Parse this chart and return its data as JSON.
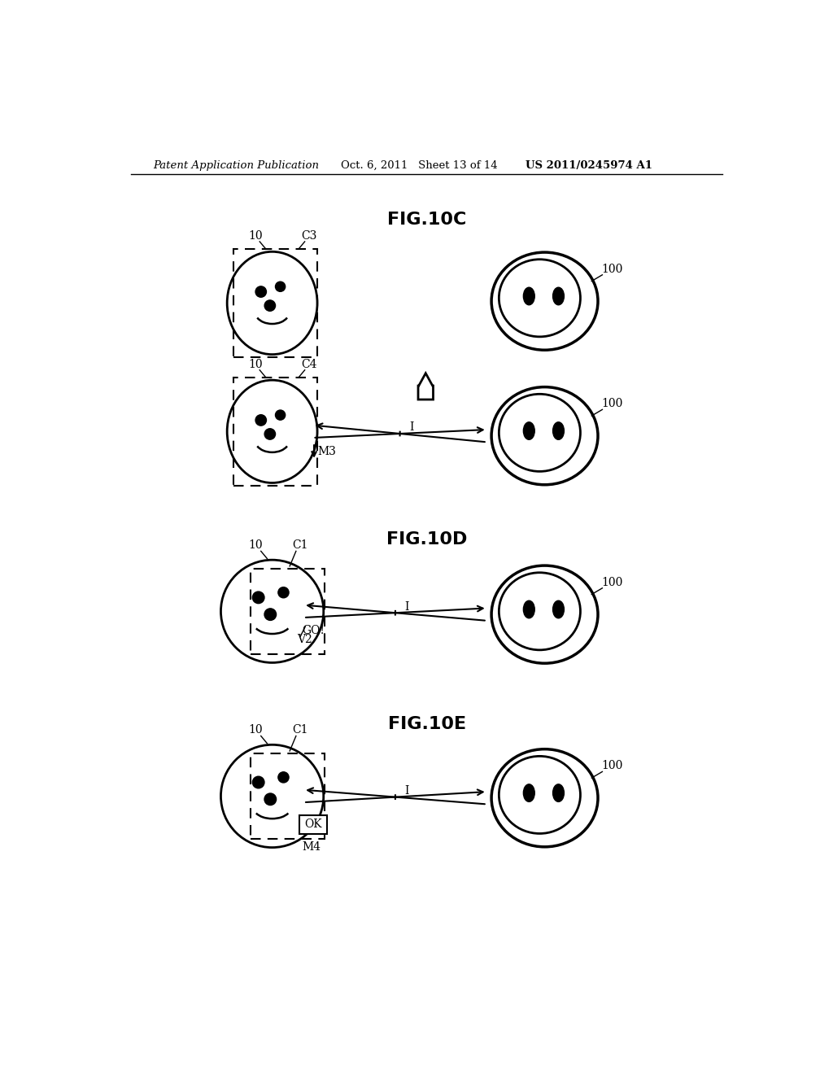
{
  "bg_color": "#ffffff",
  "header_left": "Patent Application Publication",
  "header_mid": "Oct. 6, 2011   Sheet 13 of 14",
  "header_right": "US 2011/0245974 A1",
  "fig10c_label": "FIG.10C",
  "fig10d_label": "FIG.10D",
  "fig10e_label": "FIG.10E"
}
